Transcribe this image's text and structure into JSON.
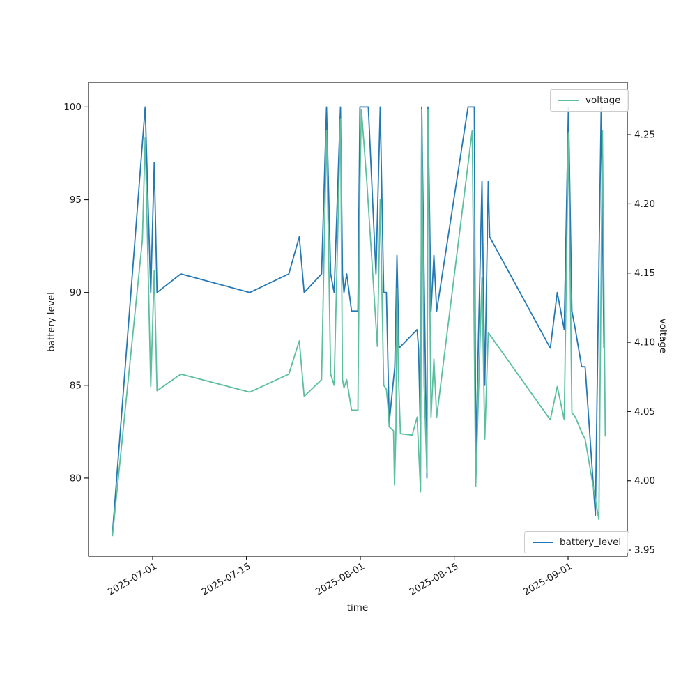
{
  "figure": {
    "background": "#ffffff",
    "frame_color": "#1a1a1a"
  },
  "axes": {
    "x_label": "time",
    "left_label": "battery level",
    "right_label": "voltage"
  },
  "legend_top": {
    "label": "voltage"
  },
  "legend_bottom": {
    "label": "battery_level"
  },
  "chart_data": {
    "type": "line",
    "title": "",
    "xlabel": "time",
    "ylabel_left": "battery level",
    "ylabel_right": "voltage",
    "x_epoch": "2025-06-25",
    "x_unit": "days since 2025-06-25",
    "xlim": [
      -3.57,
      76.84
    ],
    "ylim_left": [
      75.79,
      101.33
    ],
    "ylim_right": [
      3.9455,
      4.2878
    ],
    "grid": false,
    "x_ticks": [
      {
        "label": "2025-07-01",
        "day": 6
      },
      {
        "label": "2025-07-15",
        "day": 20
      },
      {
        "label": "2025-08-01",
        "day": 37
      },
      {
        "label": "2025-08-15",
        "day": 51
      },
      {
        "label": "2025-09-01",
        "day": 68
      }
    ],
    "left_ticks": [
      {
        "v": 80,
        "label": "80"
      },
      {
        "v": 85,
        "label": "85"
      },
      {
        "v": 90,
        "label": "90"
      },
      {
        "v": 95,
        "label": "95"
      },
      {
        "v": 100,
        "label": "100"
      }
    ],
    "right_ticks": [
      {
        "v": 3.95,
        "label": "3.95"
      },
      {
        "v": 4.0,
        "label": "4.00"
      },
      {
        "v": 4.05,
        "label": "4.05"
      },
      {
        "v": 4.1,
        "label": "4.10"
      },
      {
        "v": 4.15,
        "label": "4.15"
      },
      {
        "v": 4.2,
        "label": "4.20"
      },
      {
        "v": 4.25,
        "label": "4.25"
      }
    ],
    "series": [
      {
        "name": "battery_level",
        "axis": "left",
        "color": "#2478b4",
        "points": [
          [
            0,
            77
          ],
          [
            4.89,
            100
          ],
          [
            5.72,
            90
          ],
          [
            6.24,
            97
          ],
          [
            6.66,
            90
          ],
          [
            10.2,
            91
          ],
          [
            20.5,
            90
          ],
          [
            26.33,
            91
          ],
          [
            27.89,
            93
          ],
          [
            28.62,
            90
          ],
          [
            31.22,
            91
          ],
          [
            31.95,
            100
          ],
          [
            32.57,
            91
          ],
          [
            33.09,
            90
          ],
          [
            34.03,
            100
          ],
          [
            34.34,
            91
          ],
          [
            34.55,
            90
          ],
          [
            34.96,
            91
          ],
          [
            35.69,
            89
          ],
          [
            36.63,
            89
          ],
          [
            36.94,
            100
          ],
          [
            38.19,
            100
          ],
          [
            39.33,
            91
          ],
          [
            39.96,
            100
          ],
          [
            40.48,
            90
          ],
          [
            40.89,
            90
          ],
          [
            41.31,
            83
          ],
          [
            42.14,
            86
          ],
          [
            42.46,
            92
          ],
          [
            42.77,
            87
          ],
          [
            45.47,
            88
          ],
          [
            45.68,
            87
          ],
          [
            45.99,
            82
          ],
          [
            46.15,
            100
          ],
          [
            46.51,
            91
          ],
          [
            46.93,
            80
          ],
          [
            47.09,
            100
          ],
          [
            47.55,
            89
          ],
          [
            47.97,
            92
          ],
          [
            48.39,
            89
          ],
          [
            53.07,
            100
          ],
          [
            54.01,
            100
          ],
          [
            54.21,
            81
          ],
          [
            55.15,
            96
          ],
          [
            55.57,
            85
          ],
          [
            56.09,
            96
          ],
          [
            56.3,
            93
          ],
          [
            65.35,
            87
          ],
          [
            66.39,
            90
          ],
          [
            67.43,
            88
          ],
          [
            68.05,
            100
          ],
          [
            68.57,
            89
          ],
          [
            69.09,
            88
          ],
          [
            70.03,
            86
          ],
          [
            70.55,
            86
          ],
          [
            72.08,
            78
          ],
          [
            72.94,
            100
          ],
          [
            73.36,
            87
          ]
        ]
      },
      {
        "name": "voltage",
        "axis": "right",
        "color": "#5bbf9f",
        "points": [
          [
            0,
            3.96
          ],
          [
            4.47,
            4.174
          ],
          [
            4.89,
            4.248
          ],
          [
            5.72,
            4.068
          ],
          [
            6.24,
            4.152
          ],
          [
            6.66,
            4.065
          ],
          [
            10.2,
            4.077
          ],
          [
            20.5,
            4.064
          ],
          [
            26.33,
            4.077
          ],
          [
            27.89,
            4.101
          ],
          [
            28.62,
            4.061
          ],
          [
            31.22,
            4.073
          ],
          [
            31.95,
            4.253
          ],
          [
            32.57,
            4.077
          ],
          [
            33.09,
            4.069
          ],
          [
            34.03,
            4.261
          ],
          [
            34.34,
            4.073
          ],
          [
            34.55,
            4.067
          ],
          [
            34.96,
            4.073
          ],
          [
            35.69,
            4.051
          ],
          [
            36.63,
            4.051
          ],
          [
            36.94,
            4.215
          ],
          [
            37.15,
            4.268
          ],
          [
            37.98,
            4.215
          ],
          [
            39.54,
            4.097
          ],
          [
            39.96,
            4.203
          ],
          [
            40.48,
            4.069
          ],
          [
            40.89,
            4.066
          ],
          [
            41.1,
            4.055
          ],
          [
            41.31,
            4.039
          ],
          [
            41.95,
            4.036
          ],
          [
            42.1,
            3.997
          ],
          [
            42.3,
            4.036
          ],
          [
            42.46,
            4.139
          ],
          [
            42.67,
            4.079
          ],
          [
            42.98,
            4.034
          ],
          [
            44.74,
            4.033
          ],
          [
            45.47,
            4.046
          ],
          [
            45.99,
            3.992
          ],
          [
            46.15,
            4.268
          ],
          [
            46.51,
            4.07
          ],
          [
            46.93,
            4.006
          ],
          [
            47.09,
            4.268
          ],
          [
            47.55,
            4.046
          ],
          [
            47.97,
            4.088
          ],
          [
            48.39,
            4.046
          ],
          [
            53.69,
            4.253
          ],
          [
            54.21,
            3.996
          ],
          [
            55.15,
            4.147
          ],
          [
            55.57,
            4.03
          ],
          [
            56.09,
            4.107
          ],
          [
            65.35,
            4.044
          ],
          [
            66.39,
            4.068
          ],
          [
            67.43,
            4.044
          ],
          [
            68.05,
            4.251
          ],
          [
            68.57,
            4.049
          ],
          [
            69.09,
            4.046
          ],
          [
            70.03,
            4.035
          ],
          [
            70.55,
            4.03
          ],
          [
            72.6,
            3.972
          ],
          [
            73.13,
            4.253
          ],
          [
            73.55,
            4.032
          ]
        ]
      }
    ]
  }
}
